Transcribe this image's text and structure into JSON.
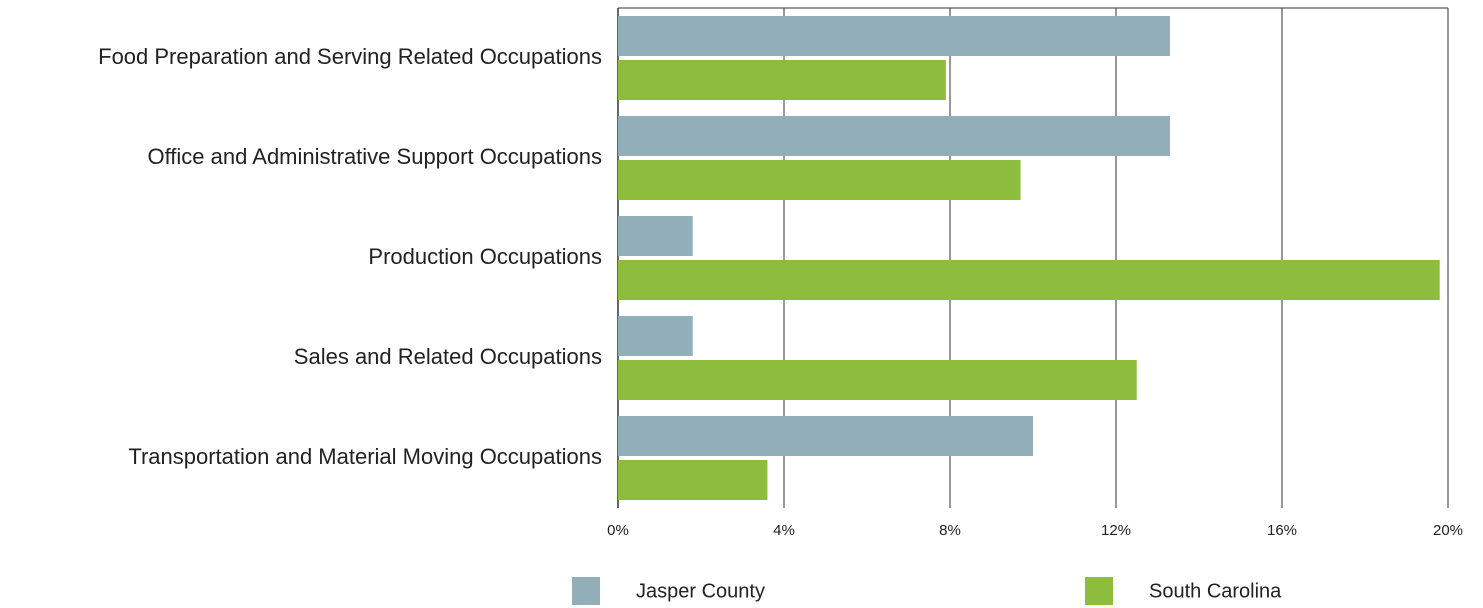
{
  "chart_data": {
    "type": "bar",
    "orientation": "horizontal",
    "categories": [
      "Food Preparation and Serving Related Occupations",
      "Office and Administrative Support Occupations",
      "Production Occupations",
      "Sales and Related Occupations",
      "Transportation and Material Moving Occupations"
    ],
    "series": [
      {
        "name": "Jasper County",
        "color": "#92afb9",
        "values": [
          13.3,
          13.3,
          1.8,
          1.8,
          10.0
        ]
      },
      {
        "name": "South Carolina",
        "color": "#8dbd3c",
        "values": [
          7.9,
          9.7,
          19.8,
          12.5,
          3.6
        ]
      }
    ],
    "xlim": [
      0,
      20
    ],
    "xticks": [
      {
        "value": 0,
        "label": "0%"
      },
      {
        "value": 4,
        "label": "4%"
      },
      {
        "value": 8,
        "label": "8%"
      },
      {
        "value": 12,
        "label": "12%"
      },
      {
        "value": 16,
        "label": "16%"
      },
      {
        "value": 20,
        "label": "20%"
      }
    ],
    "grid": true,
    "legend": "bottom"
  }
}
